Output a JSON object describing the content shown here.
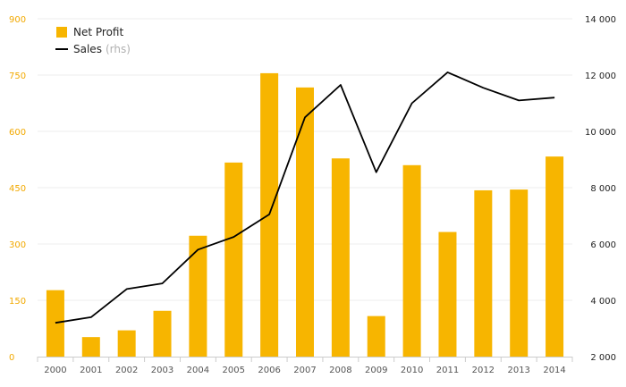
{
  "chart_data": {
    "type": "bar",
    "categories": [
      "2000",
      "2001",
      "2002",
      "2003",
      "2004",
      "2005",
      "2006",
      "2007",
      "2008",
      "2009",
      "2010",
      "2011",
      "2012",
      "2013",
      "2014"
    ],
    "series": [
      {
        "name": "Net Profit",
        "type": "bar",
        "axis": "left",
        "color": "#f7b500",
        "values": [
          177,
          52,
          70,
          122,
          322,
          517,
          755,
          717,
          528,
          108,
          510,
          332,
          443,
          445,
          533
        ]
      },
      {
        "name": "Sales",
        "type": "line",
        "axis": "right",
        "color": "#000000",
        "values": [
          3200,
          3400,
          4400,
          4600,
          5800,
          6250,
          7050,
          10500,
          11650,
          8550,
          11000,
          12100,
          11550,
          11100,
          11200
        ]
      }
    ],
    "y_left": {
      "range": [
        0,
        900
      ],
      "ticks": [
        0,
        150,
        300,
        450,
        600,
        750,
        900
      ],
      "tick_labels": [
        "0",
        "150",
        "300",
        "450",
        "600",
        "750",
        "900"
      ],
      "color": "#f2a900"
    },
    "y_right": {
      "range": [
        2000,
        14000
      ],
      "ticks": [
        2000,
        4000,
        6000,
        8000,
        10000,
        12000,
        14000
      ],
      "tick_labels": [
        "2 000",
        "4 000",
        "6 000",
        "8 000",
        "10 000",
        "12 000",
        "14 000"
      ],
      "color": "#222222"
    },
    "legend": {
      "position": "top-left",
      "items": [
        {
          "label": "Net Profit",
          "suffix": "",
          "symbol": "square",
          "color": "#f7b500"
        },
        {
          "label": "Sales",
          "suffix": "(rhs)",
          "symbol": "line",
          "color": "#000000"
        }
      ]
    },
    "grid": true,
    "title": "",
    "xlabel": "",
    "ylabel": ""
  }
}
